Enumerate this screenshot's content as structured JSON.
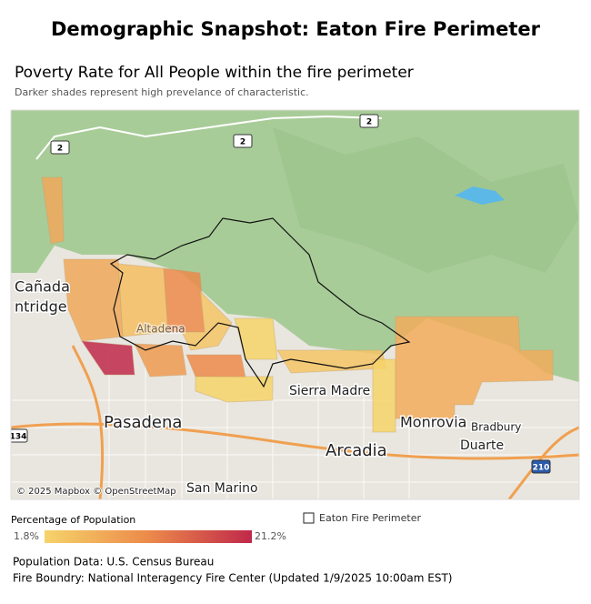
{
  "header": {
    "title": "Demographic Snapshot: Eaton Fire Perimeter",
    "subtitle": "Poverty Rate for All People within the fire perimeter",
    "note": "Darker shades represent high prevelance of characteristic."
  },
  "map": {
    "places": [
      "Cañada",
      "ntridge",
      "Altadena",
      "Sierra Madre",
      "Pasadena",
      "Monrovia",
      "Bradbury",
      "Arcadia",
      "Duarte",
      "San Marino"
    ],
    "shields": [
      "2",
      "2",
      "2",
      "134",
      "210"
    ],
    "attribution": "© 2025 Mapbox © OpenStreetMap"
  },
  "legend": {
    "title": "Percentage of Population",
    "min_label": "1.8%",
    "max_label": "21.2%",
    "perimeter_label": "Eaton Fire Perimeter"
  },
  "footer": {
    "lines": [
      "Population Data: U.S. Census Bureau",
      "Fire Boundry: National Interagency Fire Center (Updated 1/9/2025  10:00am EST)"
    ]
  }
}
